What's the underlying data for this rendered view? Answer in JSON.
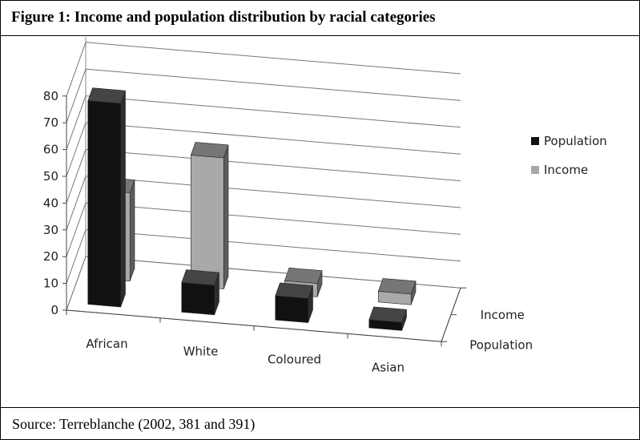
{
  "figure": {
    "title": "Figure 1:  Income and population distribution by racial categories",
    "source": "Source:  Terreblanche (2002, 381 and 391)"
  },
  "chart_data": {
    "type": "bar",
    "style": "3d-clustered",
    "categories": [
      "African",
      "White",
      "Coloured",
      "Asian"
    ],
    "depth_labels": [
      "Income",
      "Population"
    ],
    "series": [
      {
        "name": "Population",
        "values": [
          76,
          11,
          9,
          3
        ],
        "color": "#111111"
      },
      {
        "name": "Income",
        "values": [
          33,
          49,
          5,
          4
        ],
        "color": "#a9a9a9"
      }
    ],
    "y_ticks": [
      "0",
      "10",
      "20",
      "30",
      "40",
      "50",
      "60",
      "70",
      "80"
    ],
    "ylim": [
      0,
      80
    ],
    "grid": true,
    "legend": "right"
  }
}
